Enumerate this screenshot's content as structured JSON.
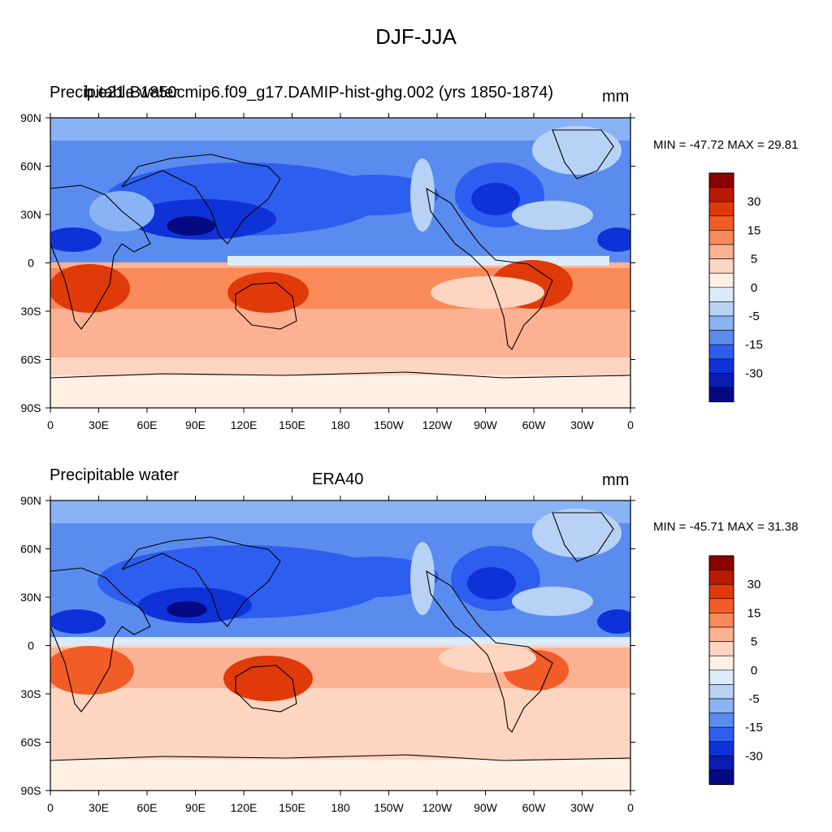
{
  "title": "DJF-JJA",
  "x_ticks": [
    "0",
    "30E",
    "60E",
    "90E",
    "120E",
    "150E",
    "180",
    "150W",
    "120W",
    "90W",
    "60W",
    "30W",
    "0"
  ],
  "y_ticks": [
    "90N",
    "60N",
    "30N",
    "0",
    "30S",
    "60S",
    "90S"
  ],
  "colorbar": {
    "labels": [
      "30",
      "15",
      "5",
      "0",
      "-5",
      "-15",
      "-30"
    ],
    "colors": [
      "#8c0000",
      "#b81a00",
      "#e03a0a",
      "#f25c26",
      "#fa8a5a",
      "#fcb193",
      "#fdd5c1",
      "#fff0e3",
      "#dcebfa",
      "#b8d2f5",
      "#8ab3f5",
      "#5a8cf0",
      "#2d5ef0",
      "#0f32d8",
      "#0a1cb4",
      "#050a82"
    ]
  },
  "panels": [
    {
      "id": "top",
      "left_title": "Precipitable water",
      "center_title": "b.e21.B1850cmip6.f09_g17.DAMIP-hist-ghg.002 (yrs 1850-1874)",
      "units": "mm",
      "minmax": "MIN = -47.72 MAX =  29.81"
    },
    {
      "id": "bottom",
      "left_title": "Precipitable water",
      "center_title": "ERA40",
      "units": "mm",
      "minmax": "MIN = -45.71 MAX =  31.38"
    }
  ],
  "map_data": {
    "field": "Precipitable water difference DJF minus JJA",
    "projection": "cylindrical-equidistant",
    "lon_range": [
      0,
      360
    ],
    "lat_range": [
      -90,
      90
    ]
  }
}
